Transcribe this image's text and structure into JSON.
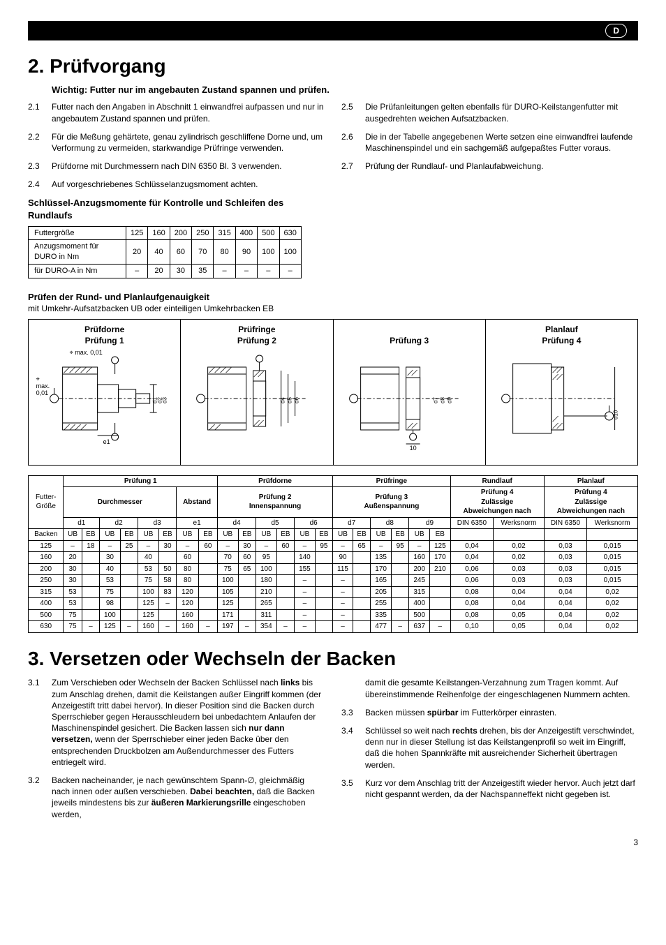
{
  "badge": "D",
  "section2": {
    "title": "2. Prüfvorgang",
    "important": "Wichtig: Futter nur im angebauten Zustand spannen und prüfen.",
    "left": [
      {
        "n": "2.1",
        "t": "Futter nach den Angaben in Abschnitt 1 einwandfrei aufpassen und nur in angebautem Zustand spannen und prüfen."
      },
      {
        "n": "2.2",
        "t": "Für die Meßung gehärtete, genau zylindrisch geschliffene Dorne und, um Verformung zu vermeiden, starkwandige Prüfringe verwenden."
      },
      {
        "n": "2.3",
        "t": "Prüfdorne mit Durchmessern nach DIN 6350 Bl. 3 verwenden."
      },
      {
        "n": "2.4",
        "t": "Auf vorgeschriebenes Schlüsselanzugsmoment achten."
      }
    ],
    "right": [
      {
        "n": "2.5",
        "t": "Die Prüfanleitungen gelten ebenfalls für DURO-Keilstangenfutter mit ausgedrehten weichen Aufsatzbacken."
      },
      {
        "n": "2.6",
        "t": "Die in der Tabelle angegebenen Werte setzen eine einwandfrei laufende Maschinenspindel und ein sachgemäß aufgepaßtes Futter voraus."
      },
      {
        "n": "2.7",
        "t": "Prüfung der Rundlauf- und Planlaufabweichung."
      }
    ],
    "torque_heading": "Schlüssel-Anzugsmomente für Kontrolle und Schleifen des Rundlaufs",
    "torque": {
      "cols": [
        "Futtergröße",
        "125",
        "160",
        "200",
        "250",
        "315",
        "400",
        "500",
        "630"
      ],
      "rows": [
        [
          "Anzugsmoment für DURO in Nm",
          "20",
          "40",
          "60",
          "70",
          "80",
          "90",
          "100",
          "100"
        ],
        [
          "für DURO-A in Nm",
          "–",
          "20",
          "30",
          "35",
          "–",
          "–",
          "–",
          "–"
        ]
      ]
    },
    "accuracy_heading": "Prüfen der Rund- und Planlaufgenauigkeit",
    "accuracy_sub": "mit Umkehr-Aufsatzbacken UB oder einteiligen Umkehrbacken EB",
    "diagrams": [
      {
        "h1": "Prüfdorne",
        "h2": "Prüfung 1",
        "note1": "max. 0,01",
        "note2": "max. 0,01",
        "dims": "d1 d2 d3",
        "x": "e1"
      },
      {
        "h1": "Prüfringe",
        "h2": "Prüfung 2",
        "dims": "d4 d5 d6"
      },
      {
        "h1": "",
        "h2": "Prüfung 3",
        "dims": "d7 d8 d9",
        "x": "10"
      },
      {
        "h1": "Planlauf",
        "h2": "Prüfung 4",
        "dims": "d10"
      }
    ],
    "bigtable": {
      "group_headers": [
        "Futter-Größe",
        "Prüfung 1",
        "Prüfdorne Prüfung 2",
        "Prüfringe Prüfung 3",
        "Rundlauf Prüfung 4",
        "Planlauf Prüfung 4"
      ],
      "sub1": [
        "Durchmesser",
        "Abstand",
        "Innenspannung",
        "Außenspannung",
        "Zulässige Abweichungen nach",
        "Zulässige Abweichungen nach"
      ],
      "d_row": [
        "",
        "d1",
        "d2",
        "d3",
        "e1",
        "d4",
        "d5",
        "d6",
        "d7",
        "d8",
        "d9",
        "DIN 6350",
        "Werksnorm",
        "DIN 6350",
        "Werksnorm"
      ],
      "backen_row": [
        "Backen",
        "UB",
        "EB",
        "UB",
        "EB",
        "UB",
        "EB",
        "UB",
        "EB",
        "UB",
        "EB",
        "UB",
        "EB",
        "UB",
        "EB",
        "UB",
        "EB",
        "UB",
        "EB",
        "UB",
        "EB",
        "",
        "",
        "",
        ""
      ],
      "rows": [
        [
          "125",
          "–",
          "18",
          "–",
          "25",
          "–",
          "30",
          "–",
          "60",
          "–",
          "30",
          "–",
          "60",
          "–",
          "95",
          "–",
          "65",
          "–",
          "95",
          "–",
          "125",
          "0,04",
          "0,02",
          "0,03",
          "0,015"
        ],
        [
          "160",
          "20",
          "",
          "30",
          "",
          "40",
          "",
          "60",
          "",
          "70",
          "60",
          "95",
          "",
          "140",
          "",
          "90",
          "",
          "135",
          "",
          "160",
          "170",
          "0,04",
          "0,02",
          "0,03",
          "0,015"
        ],
        [
          "200",
          "30",
          "",
          "40",
          "",
          "53",
          "50",
          "80",
          "",
          "75",
          "65",
          "100",
          "",
          "155",
          "",
          "115",
          "",
          "170",
          "",
          "200",
          "210",
          "0,06",
          "0,03",
          "0,03",
          "0,015"
        ],
        [
          "250",
          "30",
          "",
          "53",
          "",
          "75",
          "58",
          "80",
          "",
          "100",
          "",
          "180",
          "",
          "–",
          "",
          "–",
          "",
          "165",
          "",
          "245",
          "",
          "0,06",
          "0,03",
          "0,03",
          "0,015"
        ],
        [
          "315",
          "53",
          "",
          "75",
          "",
          "100",
          "83",
          "120",
          "",
          "105",
          "",
          "210",
          "",
          "–",
          "",
          "–",
          "",
          "205",
          "",
          "315",
          "",
          "0,08",
          "0,04",
          "0,04",
          "0,02"
        ],
        [
          "400",
          "53",
          "",
          "98",
          "",
          "125",
          "–",
          "120",
          "",
          "125",
          "",
          "265",
          "",
          "–",
          "",
          "–",
          "",
          "255",
          "",
          "400",
          "",
          "0,08",
          "0,04",
          "0,04",
          "0,02"
        ],
        [
          "500",
          "75",
          "",
          "100",
          "",
          "125",
          "",
          "160",
          "",
          "171",
          "",
          "311",
          "",
          "–",
          "",
          "–",
          "",
          "335",
          "",
          "500",
          "",
          "0,08",
          "0,05",
          "0,04",
          "0,02"
        ],
        [
          "630",
          "75",
          "–",
          "125",
          "–",
          "160",
          "–",
          "160",
          "–",
          "197",
          "–",
          "354",
          "–",
          "–",
          "",
          "–",
          "",
          "477",
          "–",
          "637",
          "–",
          "0,10",
          "0,05",
          "0,04",
          "0,02"
        ]
      ]
    }
  },
  "section3": {
    "title": "3. Versetzen oder Wechseln der Backen",
    "left": [
      {
        "n": "3.1",
        "html": "Zum Verschieben oder Wechseln der Backen Schlüssel nach <b>links</b> bis zum Anschlag drehen, damit die Keilstangen außer Eingriff kommen (der Anzeigestift tritt dabei hervor). In dieser Position sind die Backen durch Sperrschieber gegen Herausschleudern bei unbedachtem Anlaufen der Maschinenspindel gesichert. Die Backen lassen sich <b>nur dann versetzen,</b> wenn der Sperrschieber einer jeden Backe über den entsprechenden Druckbolzen am Außendurchmesser des Futters entriegelt wird."
      },
      {
        "n": "3.2",
        "html": "Backen nacheinander, je nach gewünschtem Spann-∅, gleichmäßig nach innen oder außen verschieben. <b>Dabei beachten,</b> daß die Backen jeweils mindestens bis zur <b>äußeren Markierungsrille</b> eingeschoben werden,"
      }
    ],
    "right": [
      {
        "n": "",
        "html": "damit die gesamte Keilstangen-Verzahnung zum Tragen kommt. Auf übereinstimmende Reihenfolge der eingeschlagenen Nummern achten."
      },
      {
        "n": "3.3",
        "html": "Backen müssen <b>spürbar</b> im Futterkörper einrasten."
      },
      {
        "n": "3.4",
        "html": "Schlüssel so weit nach <b>rechts</b> drehen, bis der Anzeigestift verschwindet, denn nur in dieser Stellung ist das Keilstangenprofil so weit im Eingriff, daß die hohen Spannkräfte mit ausreichender Sicherheit übertragen werden."
      },
      {
        "n": "3.5",
        "html": "Kurz vor dem Anschlag tritt der Anzeigestift wieder hervor. Auch jetzt darf nicht gespannt werden, da der Nachspanneffekt nicht gegeben ist."
      }
    ]
  },
  "page": "3"
}
